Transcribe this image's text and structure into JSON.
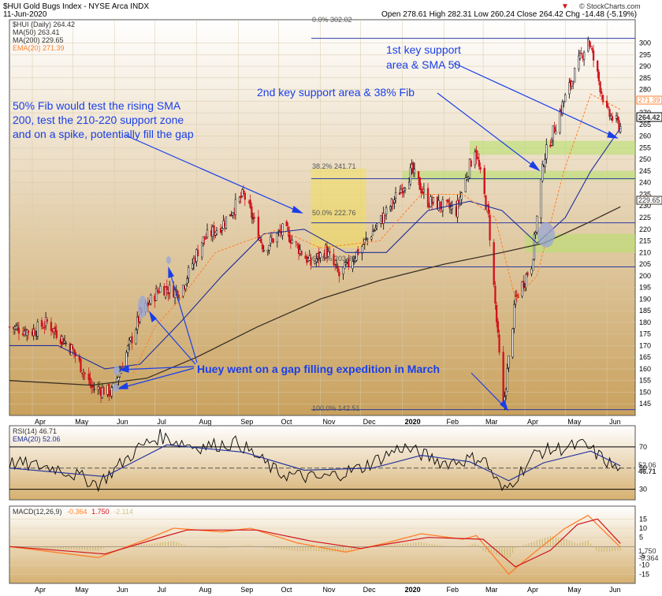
{
  "header": {
    "symbol_title": "$HUI Gold Bugs Index - NYSE Arca  INDX",
    "date": "11-Jun-2020",
    "ohlc": "Open 278.61  High 282.31  Low 260.24  Close 264.42  Chg -14.48 (-5.19%)",
    "ohlc_arrow": "▼",
    "source": "© StockCharts.com"
  },
  "legend": {
    "main": "$HUI (Daily) 264.42",
    "ma50": "MA(50) 263.41",
    "ma200": "MA(200) 229.65",
    "ema20": "EMA(20) 271.39"
  },
  "annotations": {
    "fib50_line1": "50% Fib would test the rising SMA",
    "fib50_line2": "200, test the 210-220 support zone",
    "fib50_line3": "and on a spike, potentially fill the gap",
    "key1_line1": "1st key support",
    "key1_line2": "area & SMA 50",
    "key2": "2nd key support area & 38% Fib",
    "huey": "Huey went on a gap filling expedition in March"
  },
  "fib_labels": {
    "f0": "0.0% 302.02",
    "f38": "38.2% 241.71",
    "f50": "50.0% 222.76",
    "f61": "61.8% 203.82",
    "f100": "100.0% 142.51"
  },
  "price_tags": {
    "ema20": "271.39",
    "close": "264.42",
    "ma200": "229.65"
  },
  "rsi": {
    "legend": "RSI(14) 46.71",
    "ema_legend": "EMA(20) 52.06",
    "tag_ema": "52.06",
    "tag_rsi": "46.71"
  },
  "macd": {
    "legend_prefix": "MACD(12,26,9)",
    "value1": "-0.364",
    "value2": "1.750",
    "value3": "-2.114",
    "tag1": "1.750",
    "tag2": "-0.364"
  },
  "colors": {
    "price_bg_top": "#ffffff",
    "price_bg_bottom": "#c9a15d",
    "annotation_blue": "#1a3fe8",
    "support_green": "#b7df6e",
    "fib_yellow": "#f3e14a",
    "ma50": "#1e2f9c",
    "ma200": "#3a3024",
    "ema20": "#ff7f2a",
    "candle_up": "#000000",
    "candle_down": "#d0131c"
  },
  "chart_data": [
    {
      "type": "candlestick",
      "title": "$HUI Gold Bugs Index",
      "y_axis_side": "right",
      "ylim": [
        140,
        310
      ],
      "y_ticks": [
        145,
        150,
        155,
        160,
        165,
        170,
        175,
        180,
        185,
        190,
        195,
        200,
        205,
        210,
        215,
        220,
        225,
        230,
        235,
        240,
        245,
        250,
        255,
        260,
        265,
        270,
        275,
        280,
        285,
        290,
        295,
        300
      ],
      "x_ticks": [
        "Apr",
        "May",
        "Jun",
        "Jul",
        "Aug",
        "Sep",
        "Oct",
        "Nov",
        "Dec",
        "2020",
        "Feb",
        "Mar",
        "Apr",
        "May",
        "Jun"
      ],
      "x_tick_dates": [
        "2019-04-01",
        "2019-05-01",
        "2019-06-01",
        "2019-07-01",
        "2019-08-01",
        "2019-09-01",
        "2019-10-01",
        "2019-11-01",
        "2019-12-01",
        "2020-01-01",
        "2020-02-01",
        "2020-03-01",
        "2020-04-01",
        "2020-05-01",
        "2020-06-01"
      ],
      "x_range": [
        "2019-03-15",
        "2020-06-22"
      ],
      "close_path": [
        {
          "date": "2019-03-15",
          "value": 178
        },
        {
          "date": "2019-04-01",
          "value": 176
        },
        {
          "date": "2019-04-12",
          "value": 180
        },
        {
          "date": "2019-05-01",
          "value": 168
        },
        {
          "date": "2019-05-15",
          "value": 152
        },
        {
          "date": "2019-05-30",
          "value": 150
        },
        {
          "date": "2019-06-07",
          "value": 162
        },
        {
          "date": "2019-06-20",
          "value": 183
        },
        {
          "date": "2019-07-05",
          "value": 195
        },
        {
          "date": "2019-07-20",
          "value": 193
        },
        {
          "date": "2019-08-05",
          "value": 215
        },
        {
          "date": "2019-08-20",
          "value": 222
        },
        {
          "date": "2019-09-05",
          "value": 235
        },
        {
          "date": "2019-09-20",
          "value": 212
        },
        {
          "date": "2019-10-05",
          "value": 220
        },
        {
          "date": "2019-10-25",
          "value": 205
        },
        {
          "date": "2019-11-05",
          "value": 211
        },
        {
          "date": "2019-11-15",
          "value": 200
        },
        {
          "date": "2019-12-01",
          "value": 212
        },
        {
          "date": "2019-12-20",
          "value": 227
        },
        {
          "date": "2020-01-08",
          "value": 245
        },
        {
          "date": "2020-01-20",
          "value": 232
        },
        {
          "date": "2020-02-10",
          "value": 228
        },
        {
          "date": "2020-02-24",
          "value": 255
        },
        {
          "date": "2020-03-05",
          "value": 225
        },
        {
          "date": "2020-03-16",
          "value": 143
        },
        {
          "date": "2020-03-25",
          "value": 190
        },
        {
          "date": "2020-04-06",
          "value": 205
        },
        {
          "date": "2020-04-15",
          "value": 250
        },
        {
          "date": "2020-04-30",
          "value": 275
        },
        {
          "date": "2020-05-18",
          "value": 302
        },
        {
          "date": "2020-06-01",
          "value": 270
        },
        {
          "date": "2020-06-11",
          "value": 264
        }
      ],
      "ma50_path": [
        {
          "date": "2019-03-15",
          "value": 170
        },
        {
          "date": "2019-04-20",
          "value": 170
        },
        {
          "date": "2019-05-25",
          "value": 160
        },
        {
          "date": "2019-06-20",
          "value": 162
        },
        {
          "date": "2019-07-20",
          "value": 180
        },
        {
          "date": "2019-08-20",
          "value": 200
        },
        {
          "date": "2019-09-20",
          "value": 218
        },
        {
          "date": "2019-10-20",
          "value": 220
        },
        {
          "date": "2019-11-20",
          "value": 210
        },
        {
          "date": "2019-12-20",
          "value": 210
        },
        {
          "date": "2020-01-20",
          "value": 228
        },
        {
          "date": "2020-02-20",
          "value": 232
        },
        {
          "date": "2020-03-15",
          "value": 228
        },
        {
          "date": "2020-04-10",
          "value": 214
        },
        {
          "date": "2020-05-01",
          "value": 225
        },
        {
          "date": "2020-05-20",
          "value": 245
        },
        {
          "date": "2020-06-11",
          "value": 263.41
        }
      ],
      "ma200_path": [
        {
          "date": "2019-03-15",
          "value": 155
        },
        {
          "date": "2019-05-15",
          "value": 153
        },
        {
          "date": "2019-06-25",
          "value": 156
        },
        {
          "date": "2019-08-01",
          "value": 165
        },
        {
          "date": "2019-09-15",
          "value": 178
        },
        {
          "date": "2019-11-01",
          "value": 190
        },
        {
          "date": "2019-12-15",
          "value": 198
        },
        {
          "date": "2020-02-01",
          "value": 205
        },
        {
          "date": "2020-03-15",
          "value": 210
        },
        {
          "date": "2020-04-15",
          "value": 214
        },
        {
          "date": "2020-05-15",
          "value": 222
        },
        {
          "date": "2020-06-11",
          "value": 229.65
        }
      ],
      "ema20_path": [
        {
          "date": "2019-06-15",
          "value": 158
        },
        {
          "date": "2019-07-01",
          "value": 178
        },
        {
          "date": "2019-07-20",
          "value": 190
        },
        {
          "date": "2019-08-15",
          "value": 210
        },
        {
          "date": "2019-10-01",
          "value": 220
        },
        {
          "date": "2019-11-01",
          "value": 212
        },
        {
          "date": "2019-12-15",
          "value": 215
        },
        {
          "date": "2020-01-15",
          "value": 235
        },
        {
          "date": "2020-02-15",
          "value": 235
        },
        {
          "date": "2020-03-10",
          "value": 225
        },
        {
          "date": "2020-03-25",
          "value": 190
        },
        {
          "date": "2020-04-10",
          "value": 200
        },
        {
          "date": "2020-04-30",
          "value": 245
        },
        {
          "date": "2020-05-20",
          "value": 278
        },
        {
          "date": "2020-06-11",
          "value": 271.39
        }
      ],
      "fib_levels": [
        {
          "pct": "0.0%",
          "value": 302.02
        },
        {
          "pct": "38.2%",
          "value": 241.71
        },
        {
          "pct": "50.0%",
          "value": 222.76
        },
        {
          "pct": "61.8%",
          "value": 203.82
        },
        {
          "pct": "100.0%",
          "value": 142.51
        }
      ],
      "support_zones": [
        {
          "from": "2020-02-20",
          "to": "2020-06-22",
          "low": 252,
          "high": 258
        },
        {
          "from": "2020-01-01",
          "to": "2020-06-22",
          "low": 241,
          "high": 245
        },
        {
          "from": "2020-04-01",
          "to": "2020-06-22",
          "low": 210,
          "high": 218
        }
      ],
      "highlight_box": {
        "from": "2019-10-25",
        "to": "2019-12-05",
        "low": 212,
        "high": 246
      }
    },
    {
      "type": "line",
      "title": "RSI(14)",
      "ylim": [
        20,
        90
      ],
      "y_ticks": [
        30,
        50,
        70
      ],
      "reference_lines": [
        30,
        50,
        70
      ],
      "series": [
        {
          "name": "RSI(14)",
          "last": 46.71,
          "path": [
            {
              "date": "2019-03-15",
              "value": 55
            },
            {
              "date": "2019-04-20",
              "value": 50
            },
            {
              "date": "2019-05-20",
              "value": 35
            },
            {
              "date": "2019-06-20",
              "value": 70
            },
            {
              "date": "2019-07-05",
              "value": 80
            },
            {
              "date": "2019-08-01",
              "value": 70
            },
            {
              "date": "2019-09-01",
              "value": 74
            },
            {
              "date": "2019-10-01",
              "value": 45
            },
            {
              "date": "2019-11-01",
              "value": 40
            },
            {
              "date": "2019-12-01",
              "value": 50
            },
            {
              "date": "2020-01-01",
              "value": 70
            },
            {
              "date": "2020-02-01",
              "value": 55
            },
            {
              "date": "2020-03-01",
              "value": 60
            },
            {
              "date": "2020-03-16",
              "value": 27
            },
            {
              "date": "2020-04-10",
              "value": 65
            },
            {
              "date": "2020-05-15",
              "value": 72
            },
            {
              "date": "2020-06-11",
              "value": 46.71
            }
          ]
        },
        {
          "name": "EMA(20)",
          "last": 52.06,
          "path": [
            {
              "date": "2019-03-15",
              "value": 50
            },
            {
              "date": "2019-05-25",
              "value": 42
            },
            {
              "date": "2019-07-10",
              "value": 72
            },
            {
              "date": "2019-09-05",
              "value": 65
            },
            {
              "date": "2019-10-20",
              "value": 48
            },
            {
              "date": "2019-12-10",
              "value": 50
            },
            {
              "date": "2020-01-15",
              "value": 62
            },
            {
              "date": "2020-02-20",
              "value": 56
            },
            {
              "date": "2020-03-20",
              "value": 38
            },
            {
              "date": "2020-04-15",
              "value": 55
            },
            {
              "date": "2020-05-20",
              "value": 66
            },
            {
              "date": "2020-06-11",
              "value": 52.06
            }
          ]
        }
      ]
    },
    {
      "type": "line",
      "title": "MACD(12,26,9)",
      "ylim": [
        -20,
        22
      ],
      "y_ticks": [
        -15,
        -10,
        -5,
        5,
        10,
        15
      ],
      "series": [
        {
          "name": "MACD",
          "last": -0.364,
          "path": [
            {
              "date": "2019-03-15",
              "value": 0
            },
            {
              "date": "2019-05-20",
              "value": -6
            },
            {
              "date": "2019-06-25",
              "value": 4
            },
            {
              "date": "2019-07-15",
              "value": 10
            },
            {
              "date": "2019-08-20",
              "value": 8
            },
            {
              "date": "2019-09-10",
              "value": 10
            },
            {
              "date": "2019-10-15",
              "value": 2
            },
            {
              "date": "2019-11-20",
              "value": -3
            },
            {
              "date": "2019-12-20",
              "value": 2
            },
            {
              "date": "2020-01-15",
              "value": 7
            },
            {
              "date": "2020-02-15",
              "value": 4
            },
            {
              "date": "2020-02-25",
              "value": 6
            },
            {
              "date": "2020-03-20",
              "value": -15
            },
            {
              "date": "2020-04-10",
              "value": -2
            },
            {
              "date": "2020-05-01",
              "value": 10
            },
            {
              "date": "2020-05-18",
              "value": 17
            },
            {
              "date": "2020-06-11",
              "value": -0.364
            }
          ]
        },
        {
          "name": "Signal",
          "last": 1.75,
          "path": [
            {
              "date": "2019-03-15",
              "value": 0
            },
            {
              "date": "2019-05-25",
              "value": -4
            },
            {
              "date": "2019-07-01",
              "value": 4
            },
            {
              "date": "2019-07-25",
              "value": 9
            },
            {
              "date": "2019-09-15",
              "value": 9
            },
            {
              "date": "2019-10-25",
              "value": 3
            },
            {
              "date": "2019-12-01",
              "value": -1
            },
            {
              "date": "2020-01-20",
              "value": 5
            },
            {
              "date": "2020-03-01",
              "value": 4
            },
            {
              "date": "2020-03-25",
              "value": -11
            },
            {
              "date": "2020-04-20",
              "value": -2
            },
            {
              "date": "2020-05-10",
              "value": 12
            },
            {
              "date": "2020-05-25",
              "value": 15
            },
            {
              "date": "2020-06-11",
              "value": 1.75
            }
          ]
        }
      ]
    }
  ]
}
